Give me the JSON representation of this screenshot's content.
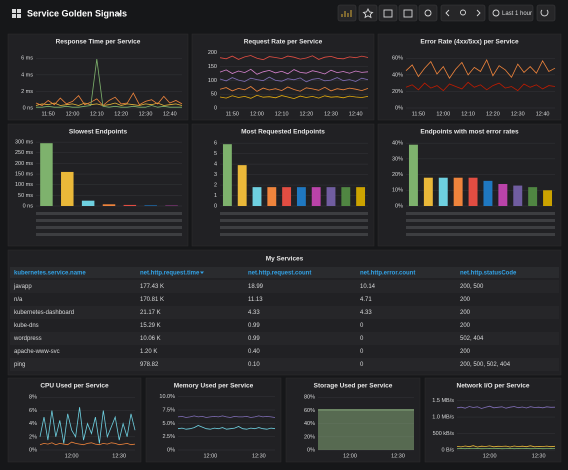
{
  "header": {
    "title": "Service Golden Signals",
    "time_range": "Last 1 hour"
  },
  "chart_data": [
    {
      "type": "line",
      "title": "Response Time per Service",
      "categories": [
        null,
        null,
        "11:50",
        null,
        null,
        null,
        "12:00",
        null,
        null,
        null,
        "12:10",
        null,
        null,
        null,
        "12:20",
        null,
        null,
        null,
        "12:30",
        null,
        null,
        null,
        "12:40",
        null,
        null
      ],
      "ylim": [
        0,
        7
      ],
      "yticks": [
        {
          "value": 0,
          "label": "0 ns"
        },
        {
          "value": 2,
          "label": "2 ms"
        },
        {
          "value": 4,
          "label": "4 ms"
        },
        {
          "value": 6,
          "label": "6 ms"
        }
      ],
      "grid": true,
      "series": [
        {
          "color": "#eab839",
          "values": [
            0.3,
            0.5,
            0.4,
            0.6,
            0.3,
            0.4,
            0.5,
            0.3,
            0.6,
            0.4,
            0.5,
            0.3,
            0.4,
            0.6,
            0.3,
            0.5,
            0.4,
            0.3,
            0.5,
            0.4,
            0.6,
            0.3,
            0.4,
            0.5,
            0.3
          ]
        },
        {
          "color": "#ef843c",
          "values": [
            0.6,
            0.3,
            0.9,
            0.4,
            1.2,
            0.5,
            0.8,
            1.5,
            0.4,
            0.7,
            1.1,
            0.3,
            0.9,
            1.3,
            0.5,
            0.6,
            1.8,
            0.4,
            0.8,
            1.0,
            0.5,
            1.4,
            0.6,
            0.9,
            0.5
          ]
        },
        {
          "color": "#7eb26d",
          "values": [
            0.1,
            0.1,
            0.2,
            0.1,
            0.1,
            0.2,
            0.1,
            0.1,
            0.2,
            0.3,
            5.9,
            0.2,
            0.1,
            0.2,
            0.1,
            0.1,
            0.2,
            0.1,
            0.1,
            0.3,
            0.1,
            0.2,
            0.1,
            0.1,
            0.1
          ]
        }
      ]
    },
    {
      "type": "line",
      "title": "Request Rate per Service",
      "categories": [
        null,
        null,
        "11:50",
        null,
        null,
        null,
        "12:00",
        null,
        null,
        null,
        "12:10",
        null,
        null,
        null,
        "12:20",
        null,
        null,
        null,
        "12:30",
        null,
        null,
        null,
        "12:40",
        null,
        null
      ],
      "ylim": [
        0,
        210
      ],
      "yticks": [
        0,
        50,
        100,
        150,
        200
      ],
      "grid": true,
      "series": [
        {
          "color": "#e24d42",
          "values": [
            182,
            178,
            188,
            176,
            185,
            190,
            180,
            175,
            186,
            183,
            179,
            188,
            184,
            177,
            181,
            189,
            176,
            184,
            187,
            180,
            178,
            185,
            182,
            188,
            183
          ]
        },
        {
          "color": "#d683ce",
          "values": [
            130,
            138,
            125,
            134,
            128,
            140,
            122,
            131,
            136,
            127,
            133,
            124,
            139,
            129,
            126,
            135,
            130,
            123,
            137,
            128,
            132,
            126,
            134,
            129,
            131
          ]
        },
        {
          "color": "#806eb7",
          "values": [
            105,
            98,
            110,
            101,
            96,
            108,
            103,
            99,
            112,
            100,
            97,
            106,
            102,
            109,
            95,
            104,
            107,
            98,
            101,
            110,
            99,
            103,
            96,
            108,
            102
          ]
        },
        {
          "color": "#ef843c",
          "values": [
            68,
            74,
            62,
            71,
            66,
            78,
            60,
            72,
            65,
            70,
            63,
            76,
            67,
            61,
            73,
            69,
            64,
            75,
            62,
            70,
            66,
            72,
            68,
            63,
            71
          ]
        },
        {
          "color": "#e5ac0e",
          "values": [
            40,
            36,
            44,
            38,
            42,
            35,
            46,
            39,
            41,
            37,
            45,
            40,
            34,
            43,
            38,
            42,
            36,
            44,
            39,
            41,
            37,
            43,
            40,
            38,
            42
          ]
        }
      ]
    },
    {
      "type": "line",
      "title": "Error Rate (4xx/5xx) per Service",
      "categories": [
        null,
        null,
        "11:50",
        null,
        null,
        null,
        "12:00",
        null,
        null,
        null,
        "12:10",
        null,
        null,
        null,
        "12:20",
        null,
        null,
        null,
        "12:30",
        null,
        null,
        null,
        "12:40",
        null,
        null
      ],
      "ylim": [
        0,
        70
      ],
      "yticks": [
        {
          "value": 0,
          "label": "0%"
        },
        {
          "value": 20,
          "label": "20%"
        },
        {
          "value": 40,
          "label": "40%"
        },
        {
          "value": 60,
          "label": "60%"
        }
      ],
      "grid": true,
      "series": [
        {
          "color": "#ef843c",
          "values": [
            45,
            52,
            38,
            48,
            56,
            41,
            50,
            36,
            47,
            55,
            40,
            49,
            44,
            58,
            39,
            51,
            46,
            37,
            53,
            43,
            50,
            42,
            57,
            44,
            48
          ]
        },
        {
          "color": "#bf1b00",
          "values": [
            25,
            28,
            22,
            30,
            24,
            27,
            21,
            29,
            26,
            23,
            31,
            25,
            28,
            22,
            27,
            30,
            24,
            26,
            21,
            29,
            25,
            28,
            23,
            27,
            26
          ]
        }
      ]
    },
    {
      "type": "bar",
      "title": "Slowest Endpoints",
      "categories": [
        null,
        null,
        null,
        null,
        null,
        null,
        null
      ],
      "values": [
        295,
        160,
        25,
        8,
        5,
        3,
        2
      ],
      "colors": [
        "#7eb26d",
        "#eab839",
        "#6ed0e0",
        "#ef843c",
        "#e24d42",
        "#1f78c1",
        "#ba43a9"
      ],
      "ylim": [
        0,
        310
      ],
      "yticks": [
        {
          "value": 0,
          "label": "0 ns"
        },
        {
          "value": 50,
          "label": "50 ms"
        },
        {
          "value": 100,
          "label": "100 ms"
        },
        {
          "value": 150,
          "label": "150 ms"
        },
        {
          "value": 200,
          "label": "200 ms"
        },
        {
          "value": 250,
          "label": "250 ms"
        },
        {
          "value": 300,
          "label": "300 ms"
        }
      ],
      "grid": true
    },
    {
      "type": "bar",
      "title": "Most Requested Endpoints",
      "categories": [
        null,
        null,
        null,
        null,
        null,
        null,
        null,
        null,
        null,
        null
      ],
      "values": [
        5.9,
        3.9,
        1.8,
        1.8,
        1.8,
        1.8,
        1.8,
        1.8,
        1.8,
        1.8
      ],
      "colors": [
        "#7eb26d",
        "#eab839",
        "#6ed0e0",
        "#ef843c",
        "#e24d42",
        "#1f78c1",
        "#ba43a9",
        "#705da0",
        "#508642",
        "#cca300"
      ],
      "ylim": [
        0,
        6.3
      ],
      "yticks": [
        0,
        1,
        2,
        3,
        4,
        5,
        6
      ],
      "grid": true
    },
    {
      "type": "bar",
      "title": "Endpoints with most error rates",
      "categories": [
        null,
        null,
        null,
        null,
        null,
        null,
        null,
        null,
        null,
        null
      ],
      "values": [
        39,
        18,
        18,
        18,
        18,
        16,
        14,
        13,
        12,
        10
      ],
      "colors": [
        "#7eb26d",
        "#eab839",
        "#6ed0e0",
        "#ef843c",
        "#e24d42",
        "#1f78c1",
        "#ba43a9",
        "#705da0",
        "#508642",
        "#cca300"
      ],
      "ylim": [
        0,
        42
      ],
      "yticks": [
        {
          "value": 0,
          "label": "0%"
        },
        {
          "value": 10,
          "label": "10%"
        },
        {
          "value": 20,
          "label": "20%"
        },
        {
          "value": 30,
          "label": "30%"
        },
        {
          "value": 40,
          "label": "40%"
        }
      ],
      "grid": true
    },
    {
      "type": "line",
      "title": "CPU Used per Service",
      "categories": [
        null,
        null,
        null,
        null,
        null,
        null,
        null,
        null,
        "12:00",
        null,
        null,
        null,
        null,
        null,
        null,
        null,
        null,
        null,
        null,
        null,
        "12:30",
        null,
        null,
        null,
        null
      ],
      "ylim": [
        0,
        8.5
      ],
      "yticks": [
        {
          "value": 0,
          "label": "0%"
        },
        {
          "value": 2,
          "label": "2%"
        },
        {
          "value": 4,
          "label": "4%"
        },
        {
          "value": 6,
          "label": "6%"
        },
        {
          "value": 8,
          "label": "8%"
        }
      ],
      "grid": true,
      "series": [
        {
          "color": "#6ed0e0",
          "values": [
            2,
            5,
            1.5,
            6,
            2,
            4.5,
            1,
            5.5,
            3,
            2,
            6.5,
            1.5,
            4,
            2.5,
            5,
            1,
            6,
            2,
            3.5,
            5,
            1.5,
            4,
            2,
            5.5,
            3
          ]
        },
        {
          "color": "#ef843c",
          "values": [
            0.8,
            1,
            0.9,
            1.1,
            0.8,
            1,
            0.9,
            0.8,
            1.2,
            1,
            0.9,
            0.8,
            1,
            1.1,
            0.9,
            0.8,
            1,
            0.9,
            1.1,
            1,
            0.8,
            0.9,
            1,
            0.8,
            0.9
          ]
        }
      ]
    },
    {
      "type": "line",
      "title": "Memory Used per Service",
      "categories": [
        null,
        null,
        null,
        null,
        null,
        null,
        null,
        null,
        "12:00",
        null,
        null,
        null,
        null,
        null,
        null,
        null,
        null,
        null,
        null,
        null,
        "12:30",
        null,
        null,
        null,
        null
      ],
      "ylim": [
        0,
        10.5
      ],
      "yticks": [
        {
          "value": 0,
          "label": "0%"
        },
        {
          "value": 2.5,
          "label": "2.5%"
        },
        {
          "value": 5,
          "label": "5.0%"
        },
        {
          "value": 7.5,
          "label": "7.5%"
        },
        {
          "value": 10,
          "label": "10.0%"
        }
      ],
      "grid": true,
      "series": [
        {
          "color": "#806eb7",
          "values": [
            6.2,
            6.3,
            6.1,
            6.2,
            6.4,
            6.2,
            6.3,
            6.1,
            6.2,
            6.3,
            6.2,
            6.4,
            6.2,
            6.1,
            6.3,
            6.2,
            6.2,
            6.3,
            6.1,
            6.2,
            6.4,
            6.2,
            6.3,
            6.2,
            6.1
          ]
        },
        {
          "color": "#6ed0e0",
          "values": [
            4,
            4.1,
            3.9,
            4,
            4.2,
            4.6,
            4.3,
            4,
            3.9,
            4.1,
            4,
            4.2,
            3.9,
            4,
            4.1,
            4.4,
            4,
            3.9,
            4.1,
            4,
            4.2,
            4,
            3.9,
            4.1,
            4
          ]
        }
      ]
    },
    {
      "type": "line",
      "title": "Storage Used per Service",
      "categories": [
        null,
        null,
        null,
        null,
        null,
        null,
        null,
        null,
        "12:00",
        null,
        null,
        null,
        null,
        null,
        null,
        null,
        null,
        null,
        null,
        null,
        "12:30",
        null,
        null,
        null,
        null
      ],
      "ylim": [
        0,
        85
      ],
      "yticks": [
        {
          "value": 0,
          "label": "0%"
        },
        {
          "value": 20,
          "label": "20%"
        },
        {
          "value": 40,
          "label": "40%"
        },
        {
          "value": 60,
          "label": "60%"
        },
        {
          "value": 80,
          "label": "80%"
        }
      ],
      "grid": true,
      "fill": true,
      "series": [
        {
          "color": "#9ac48a",
          "values": [
            61,
            61,
            61,
            61,
            61,
            61,
            61,
            61,
            61,
            61,
            61,
            61,
            61,
            61,
            61,
            61,
            61,
            61,
            61,
            61,
            61,
            61,
            61,
            61,
            61
          ]
        }
      ]
    },
    {
      "type": "line",
      "title": "Network I/O per Service",
      "categories": [
        null,
        null,
        null,
        null,
        null,
        null,
        null,
        null,
        "12:00",
        null,
        null,
        null,
        null,
        null,
        null,
        null,
        null,
        null,
        null,
        null,
        "12:30",
        null,
        null,
        null,
        null
      ],
      "ylim": [
        0,
        1700
      ],
      "yticks": [
        {
          "value": 0,
          "label": "0 B/s"
        },
        {
          "value": 500,
          "label": "500 kB/s"
        },
        {
          "value": 1000,
          "label": "1.0 MB/s"
        },
        {
          "value": 1500,
          "label": "1.5 MB/s"
        }
      ],
      "grid": true,
      "series": [
        {
          "color": "#806eb7",
          "values": [
            1280,
            1300,
            1270,
            1320,
            1290,
            1310,
            1260,
            1300,
            1330,
            1280,
            1295,
            1310,
            1270,
            1300,
            1320,
            1285,
            1305,
            1275,
            1315,
            1290,
            1300,
            1280,
            1310,
            1295,
            1300
          ]
        },
        {
          "color": "#eab839",
          "values": [
            110,
            95,
            120,
            100,
            130,
            90,
            115,
            105,
            125,
            98,
            112,
            108,
            118,
            92,
            122,
            104,
            115,
            100,
            128,
            96,
            110,
            106,
            119,
            101,
            113
          ]
        },
        {
          "color": "#7eb26d",
          "values": [
            40,
            45,
            38,
            50,
            42,
            47,
            39,
            44,
            48,
            41,
            46,
            40,
            43,
            49,
            38,
            45,
            42,
            47,
            40,
            44,
            46,
            39,
            43,
            48,
            41
          ]
        }
      ]
    }
  ],
  "table": {
    "title": "My Services",
    "columns": [
      "kubernetes.service.name",
      "net.http.request.time",
      "net.http.request.count",
      "net.http.error.count",
      "net.http.statusCode"
    ],
    "rows": [
      [
        "javapp",
        "177.43 K",
        "18.99",
        "10.14",
        "200, 500"
      ],
      [
        "n/a",
        "170.81 K",
        "11.13",
        "4.71",
        "200"
      ],
      [
        "kubernetes-dashboard",
        "21.17 K",
        "4.33",
        "4.33",
        "200"
      ],
      [
        "kube-dns",
        "15.29 K",
        "0.99",
        "0",
        "200"
      ],
      [
        "wordpress",
        "10.06 K",
        "0.99",
        "0",
        "502, 404"
      ],
      [
        "apache-www-svc",
        "1.20 K",
        "0.40",
        "0",
        "200"
      ],
      [
        "ping",
        "978.82",
        "0.10",
        "0",
        "200, 500, 502, 404"
      ]
    ]
  }
}
